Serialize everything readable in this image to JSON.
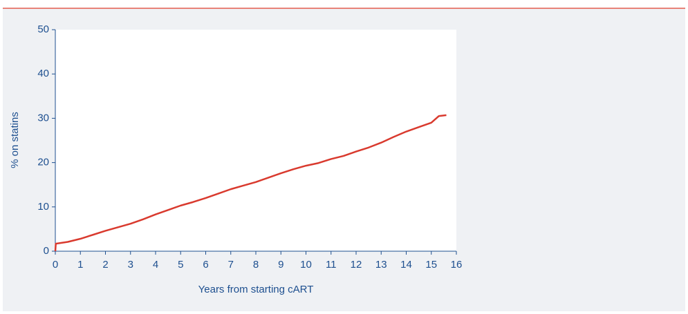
{
  "chart_data": {
    "type": "line",
    "x_label": "Years from starting cART",
    "y_label": "% on statins",
    "x": [
      0,
      0.02,
      0.5,
      1,
      1.5,
      2,
      2.5,
      3,
      3.5,
      4,
      4.5,
      5,
      5.5,
      6,
      6.5,
      7,
      7.5,
      8,
      8.5,
      9,
      9.5,
      10,
      10.5,
      11,
      11.5,
      12,
      12.5,
      13,
      13.5,
      14,
      14.5,
      15,
      15.3,
      15.6
    ],
    "values": [
      0,
      1.7,
      2.1,
      2.8,
      3.7,
      4.6,
      5.4,
      6.2,
      7.2,
      8.3,
      9.3,
      10.3,
      11.1,
      12.0,
      13.0,
      14.0,
      14.8,
      15.6,
      16.6,
      17.6,
      18.5,
      19.3,
      19.9,
      20.8,
      21.5,
      22.5,
      23.4,
      24.5,
      25.8,
      27.0,
      28.0,
      29.0,
      30.5,
      30.7
    ],
    "color": "#d93a2e",
    "xlim": [
      0,
      16
    ],
    "xticks": [
      0,
      1,
      2,
      3,
      4,
      5,
      6,
      7,
      8,
      9,
      10,
      11,
      12,
      13,
      14,
      15,
      16
    ],
    "ylim": [
      0,
      50
    ],
    "yticks": [
      0,
      10,
      20,
      30,
      40,
      50
    ],
    "grid": false
  }
}
